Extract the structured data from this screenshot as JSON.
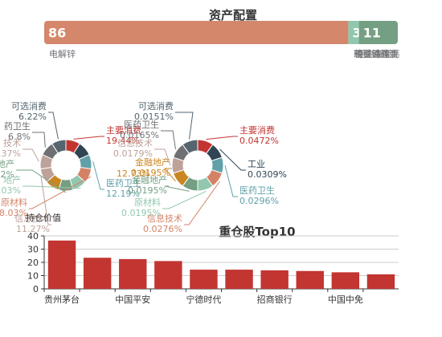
{
  "chart_data": [
    {
      "type": "bar",
      "stacked": true,
      "orientation": "horizontal",
      "title": "资产配置",
      "series": [
        {
          "name": "电解锌",
          "value": 86,
          "label": "86",
          "color": "#d4876b"
        },
        {
          "name": "硅铁",
          "value": 3,
          "label": "3",
          "color": "#91c7ae"
        },
        {
          "name": "镍",
          "value": 11,
          "label": "11",
          "color": "#749f83"
        }
      ],
      "legend_labels": [
        "电解锌",
        "硅铁",
        "镍",
        "豆油",
        "鸡蛋",
        "钙"
      ],
      "legend_placement": "bottom"
    },
    {
      "type": "pie",
      "donut": true,
      "slices": [
        {
          "label": "主要消费",
          "value": "19.44%",
          "color": "#c23531"
        },
        {
          "label": "工业",
          "value": "",
          "color": "#2f4554"
        },
        {
          "label": "医药卫生",
          "value": "12.19%",
          "color": "#61a0a8"
        },
        {
          "label": "原材料",
          "value": "8.03%",
          "color": "#d48265"
        },
        {
          "label": "地产",
          "value": "6.03%",
          "color": "#91c7ae"
        },
        {
          "label": "地产",
          "value": "6.32%",
          "color": "#749f83"
        },
        {
          "label": "金融地产",
          "value": "",
          "color": "#ca8622"
        },
        {
          "label": "信息技术",
          "value": "11.27%",
          "color": "#bda29a"
        },
        {
          "label": "技术",
          "value": "5.37%",
          "color": "#bda29a"
        },
        {
          "label": "药卫生",
          "value": "6.8%",
          "color": "#6e7074"
        },
        {
          "label": "可选消费",
          "value": "6.22%",
          "color": "#546570"
        }
      ],
      "extra_labels": [
        {
          "text": "12.73%"
        },
        {
          "text": "持仓价值"
        }
      ]
    },
    {
      "type": "pie",
      "donut": true,
      "slices": [
        {
          "label": "主要消费",
          "value": "0.0472%",
          "color": "#c23531"
        },
        {
          "label": "工业",
          "value": "0.0309%",
          "color": "#2f4554"
        },
        {
          "label": "医药卫生",
          "value": "0.0296%",
          "color": "#61a0a8"
        },
        {
          "label": "信息技术",
          "value": "0.0276%",
          "color": "#d48265"
        },
        {
          "label": "原材料",
          "value": "0.0195%",
          "color": "#91c7ae"
        },
        {
          "label": "金融地产",
          "value": "0.0195%",
          "color": "#749f83"
        },
        {
          "label": "金融地产",
          "value": "0.0195%",
          "color": "#ca8622"
        },
        {
          "label": "信息技术",
          "value": "0.0179%",
          "color": "#bda29a"
        },
        {
          "label": "医药卫生",
          "value": "0.0165%",
          "color": "#6e7074"
        },
        {
          "label": "可选消费",
          "value": "0.0151%",
          "color": "#546570"
        }
      ]
    },
    {
      "type": "bar",
      "title": "重仓股Top10",
      "categories": [
        "贵州茅台",
        "",
        "中国平安",
        "",
        "宁德时代",
        "",
        "招商银行",
        "",
        "中国中免",
        ""
      ],
      "values": [
        36.5,
        23.5,
        22.5,
        21,
        14.5,
        14.5,
        14,
        13.5,
        12.5,
        11
      ],
      "color": "#c23531",
      "ylim": [
        0,
        40
      ],
      "grid": true
    }
  ]
}
